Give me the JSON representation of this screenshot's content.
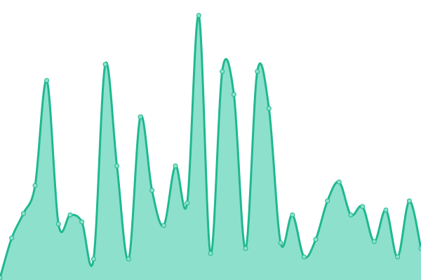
{
  "chart_data": {
    "type": "area",
    "curve": "smooth",
    "color": "#1fb890",
    "fill": "#8de0cc",
    "categories": [
      null,
      null,
      null,
      null,
      null,
      null,
      null,
      null,
      null,
      null,
      null,
      null,
      null,
      null,
      null,
      null,
      null,
      null,
      null,
      null,
      null,
      null,
      null,
      null,
      null,
      null,
      null,
      null,
      null,
      null,
      null,
      null,
      null,
      null,
      null,
      null,
      null
    ],
    "values": [
      3,
      60,
      95,
      135,
      285,
      80,
      93,
      83,
      30,
      308,
      163,
      30,
      233,
      128,
      78,
      163,
      110,
      378,
      38,
      298,
      265,
      45,
      298,
      245,
      53,
      93,
      33,
      58,
      113,
      140,
      93,
      105,
      55,
      100,
      33,
      113,
      45
    ],
    "ylim": [
      0,
      400
    ]
  }
}
